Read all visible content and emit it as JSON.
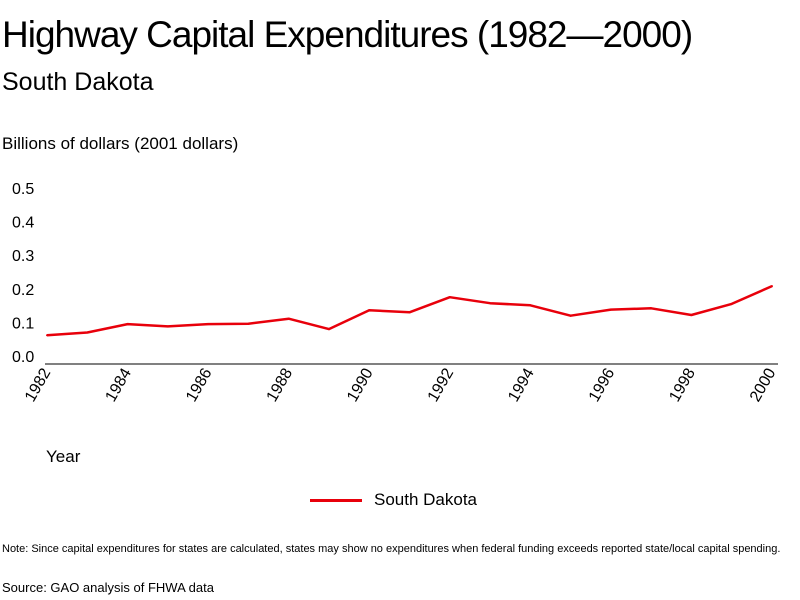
{
  "chart_data": {
    "type": "line",
    "title": "Highway Capital Expenditures (1982—2000)",
    "subtitle": "South Dakota",
    "ylabel": "Billions of dollars (2001 dollars)",
    "xlabel": "Year",
    "ylim": [
      0,
      0.5
    ],
    "yticks": [
      "0.0",
      "0.1",
      "0.2",
      "0.3",
      "0.4",
      "0.5"
    ],
    "xlim": [
      1982,
      2000
    ],
    "xticks": [
      "1982",
      "1984",
      "1986",
      "1988",
      "1990",
      "1992",
      "1994",
      "1996",
      "1998",
      "2000"
    ],
    "x": [
      1982,
      1983,
      1984,
      1985,
      1986,
      1987,
      1988,
      1989,
      1990,
      1991,
      1992,
      1993,
      1994,
      1995,
      1996,
      1997,
      1998,
      1999,
      2000
    ],
    "series": [
      {
        "name": "South Dakota",
        "color": "#e8000b",
        "values": [
          0.062,
          0.07,
          0.095,
          0.088,
          0.095,
          0.096,
          0.111,
          0.08,
          0.136,
          0.13,
          0.175,
          0.157,
          0.151,
          0.12,
          0.138,
          0.142,
          0.122,
          0.155,
          0.208
        ]
      }
    ],
    "grid": false,
    "legend": "bottom-center"
  },
  "note": "Note: Since capital expenditures for states are calculated, states may show no expenditures when federal funding exceeds reported state/local capital spending.",
  "source": "Source: GAO analysis of FHWA data"
}
